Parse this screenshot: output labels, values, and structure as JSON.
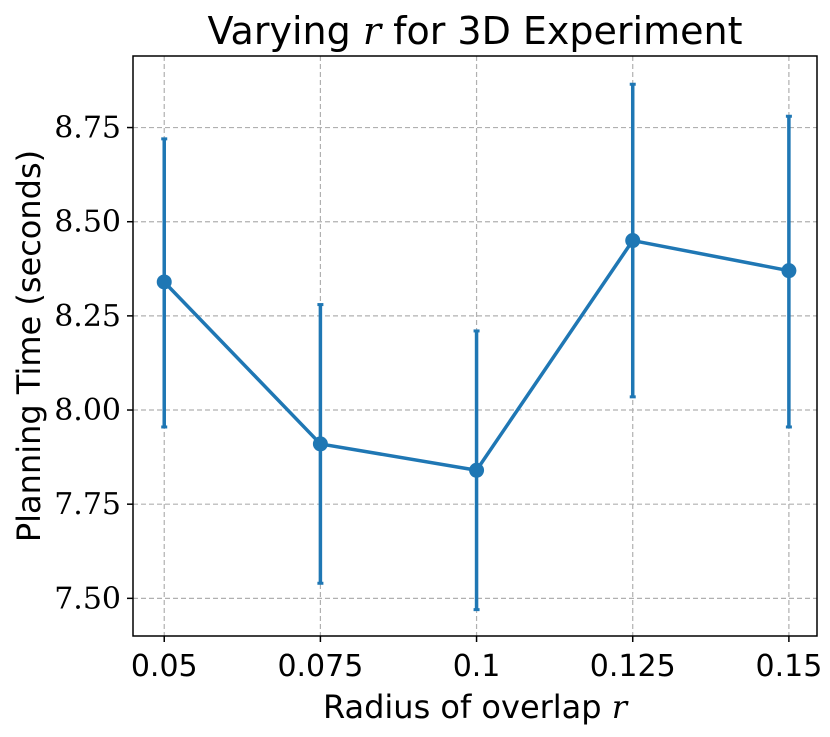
{
  "chart_data": {
    "type": "line",
    "title": "Varying",
    "title_var": "r",
    "title_suffix": "for 3D Experiment",
    "xlabel": "Radius of overlap",
    "xlabel_var": "r",
    "ylabel": "Planning Time (seconds)",
    "categories": [
      "0.05",
      "0.075",
      "0.1",
      "0.125",
      "0.15"
    ],
    "x": [
      0.05,
      0.075,
      0.1,
      0.125,
      0.15
    ],
    "xlim": [
      0.045,
      0.1545
    ],
    "ylim": [
      7.4,
      8.94
    ],
    "yticks": [
      7.5,
      7.75,
      8.0,
      8.25,
      8.5,
      8.75
    ],
    "ytick_labels": [
      "7.50",
      "7.75",
      "8.00",
      "8.25",
      "8.50",
      "8.75"
    ],
    "grid": true,
    "series": [
      {
        "name": "Planning Time",
        "color": "#1f77b4",
        "values": [
          8.34,
          7.91,
          7.84,
          8.45,
          8.37
        ],
        "error_low": [
          7.955,
          7.54,
          7.47,
          8.035,
          7.955
        ],
        "error_high": [
          8.72,
          8.28,
          8.21,
          8.865,
          8.78
        ]
      }
    ]
  }
}
